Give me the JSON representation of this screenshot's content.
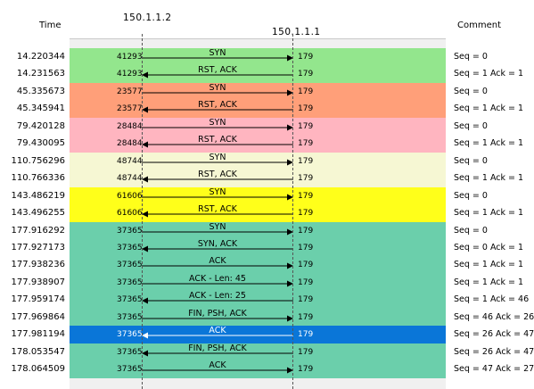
{
  "header": {
    "time_label": "Time",
    "comment_label": "Comment",
    "host_a": "150.1.1.2",
    "host_b": "150.1.1.1"
  },
  "colors": {
    "green": "#93e68d",
    "orange": "#ff9f79",
    "pink": "#ffb5c0",
    "cream": "#f6f7d3",
    "yellow": "#ffff1a",
    "teal": "#6bcfab",
    "selected": "#0a76d8"
  },
  "rows": [
    {
      "time": "14.220344",
      "sport": "41293",
      "dport": "179",
      "label": "SYN",
      "dir": "right",
      "comment": "Seq = 0",
      "color": "green"
    },
    {
      "time": "14.231563",
      "sport": "41293",
      "dport": "179",
      "label": "RST, ACK",
      "dir": "left",
      "comment": "Seq = 1 Ack = 1",
      "color": "green"
    },
    {
      "time": "45.335673",
      "sport": "23577",
      "dport": "179",
      "label": "SYN",
      "dir": "right",
      "comment": "Seq = 0",
      "color": "orange"
    },
    {
      "time": "45.345941",
      "sport": "23577",
      "dport": "179",
      "label": "RST, ACK",
      "dir": "left",
      "comment": "Seq = 1 Ack = 1",
      "color": "orange"
    },
    {
      "time": "79.420128",
      "sport": "28484",
      "dport": "179",
      "label": "SYN",
      "dir": "right",
      "comment": "Seq = 0",
      "color": "pink"
    },
    {
      "time": "79.430095",
      "sport": "28484",
      "dport": "179",
      "label": "RST, ACK",
      "dir": "left",
      "comment": "Seq = 1 Ack = 1",
      "color": "pink"
    },
    {
      "time": "110.756296",
      "sport": "48744",
      "dport": "179",
      "label": "SYN",
      "dir": "right",
      "comment": "Seq = 0",
      "color": "cream"
    },
    {
      "time": "110.766336",
      "sport": "48744",
      "dport": "179",
      "label": "RST, ACK",
      "dir": "left",
      "comment": "Seq = 1 Ack = 1",
      "color": "cream"
    },
    {
      "time": "143.486219",
      "sport": "61606",
      "dport": "179",
      "label": "SYN",
      "dir": "right",
      "comment": "Seq = 0",
      "color": "yellow"
    },
    {
      "time": "143.496255",
      "sport": "61606",
      "dport": "179",
      "label": "RST, ACK",
      "dir": "left",
      "comment": "Seq = 1 Ack = 1",
      "color": "yellow"
    },
    {
      "time": "177.916292",
      "sport": "37365",
      "dport": "179",
      "label": "SYN",
      "dir": "right",
      "comment": "Seq = 0",
      "color": "teal"
    },
    {
      "time": "177.927173",
      "sport": "37365",
      "dport": "179",
      "label": "SYN, ACK",
      "dir": "left",
      "comment": "Seq = 0 Ack = 1",
      "color": "teal"
    },
    {
      "time": "177.938236",
      "sport": "37365",
      "dport": "179",
      "label": "ACK",
      "dir": "right",
      "comment": "Seq = 1 Ack = 1",
      "color": "teal"
    },
    {
      "time": "177.938907",
      "sport": "37365",
      "dport": "179",
      "label": "ACK - Len: 45",
      "dir": "right",
      "comment": "Seq = 1 Ack = 1",
      "color": "teal"
    },
    {
      "time": "177.959174",
      "sport": "37365",
      "dport": "179",
      "label": "ACK - Len: 25",
      "dir": "left",
      "comment": "Seq = 1 Ack = 46",
      "color": "teal"
    },
    {
      "time": "177.969864",
      "sport": "37365",
      "dport": "179",
      "label": "FIN, PSH, ACK",
      "dir": "right",
      "comment": "Seq = 46 Ack = 26",
      "color": "teal"
    },
    {
      "time": "177.981194",
      "sport": "37365",
      "dport": "179",
      "label": "ACK",
      "dir": "left",
      "comment": "Seq = 26 Ack = 47",
      "color": "selected",
      "selected": true
    },
    {
      "time": "178.053547",
      "sport": "37365",
      "dport": "179",
      "label": "FIN, PSH, ACK",
      "dir": "left",
      "comment": "Seq = 26 Ack = 47",
      "color": "teal"
    },
    {
      "time": "178.064509",
      "sport": "37365",
      "dport": "179",
      "label": "ACK",
      "dir": "right",
      "comment": "Seq = 47 Ack = 27",
      "color": "teal"
    }
  ]
}
